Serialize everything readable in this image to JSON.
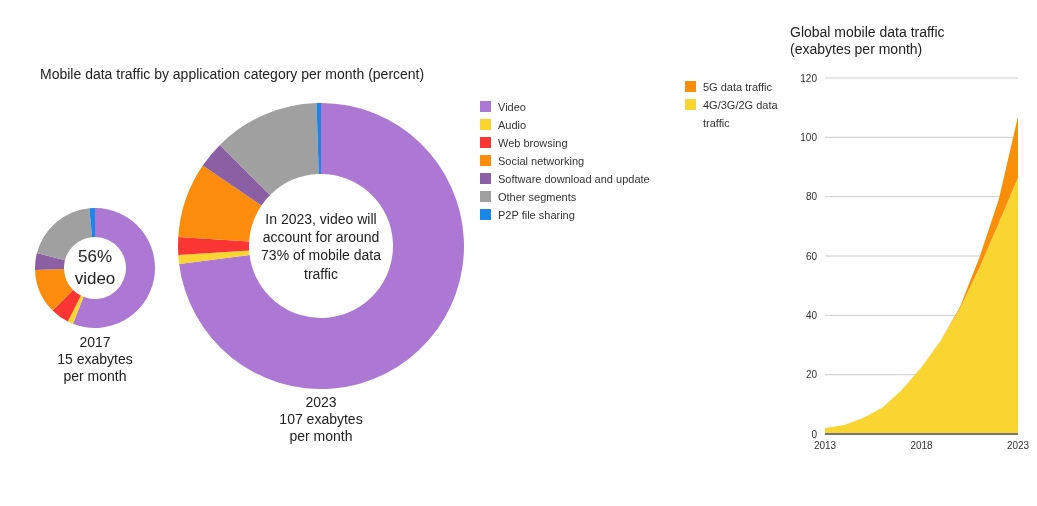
{
  "chart_data": [
    {
      "type": "donut",
      "title": "Mobile data traffic by application category per month (percent)",
      "categories": [
        "Video",
        "Audio",
        "Web browsing",
        "Social networking",
        "Software download and update",
        "Other segments",
        "P2P file sharing"
      ],
      "colors": [
        "#ad78d4",
        "#f8d531",
        "#fb3434",
        "#fb8c0c",
        "#8b5fa4",
        "#a0a0a0",
        "#1a87e8"
      ],
      "legend": "right",
      "series": [
        {
          "name": "2017",
          "values": [
            56,
            1.5,
            5,
            12,
            4.5,
            19.5,
            1.5
          ]
        },
        {
          "name": "2023",
          "values": [
            73,
            1,
            2,
            8.5,
            3,
            12,
            0.5
          ]
        }
      ],
      "annotations": [
        "56% video",
        "15 exabytes\nper month",
        "In 2023, video will account for around 73% of mobile data traffic",
        "107 exabytes\nper month"
      ]
    },
    {
      "type": "area",
      "title": "Global mobile data traffic (exabytes per month)",
      "stacked": true,
      "x": [
        2013,
        2014,
        2015,
        2016,
        2017,
        2018,
        2019,
        2020,
        2021,
        2022,
        2023
      ],
      "series": [
        {
          "name": "4G/3G/2G data traffic",
          "color": "#f8d531",
          "values": [
            2,
            3,
            5.5,
            9,
            15,
            22.5,
            31.5,
            42.5,
            56,
            71,
            86.5
          ]
        },
        {
          "name": "5G data traffic",
          "color": "#f98e0b",
          "values": [
            0,
            0,
            0,
            0,
            0,
            0,
            0,
            0.5,
            3.5,
            8,
            20.5
          ]
        }
      ],
      "xlim": [
        2013,
        2023
      ],
      "xticks": [
        2013,
        2018,
        2023
      ],
      "ylim": [
        0,
        120
      ],
      "yticks": [
        0,
        20,
        40,
        60,
        80,
        100,
        120
      ],
      "grid": "y",
      "legend": "top left"
    }
  ]
}
